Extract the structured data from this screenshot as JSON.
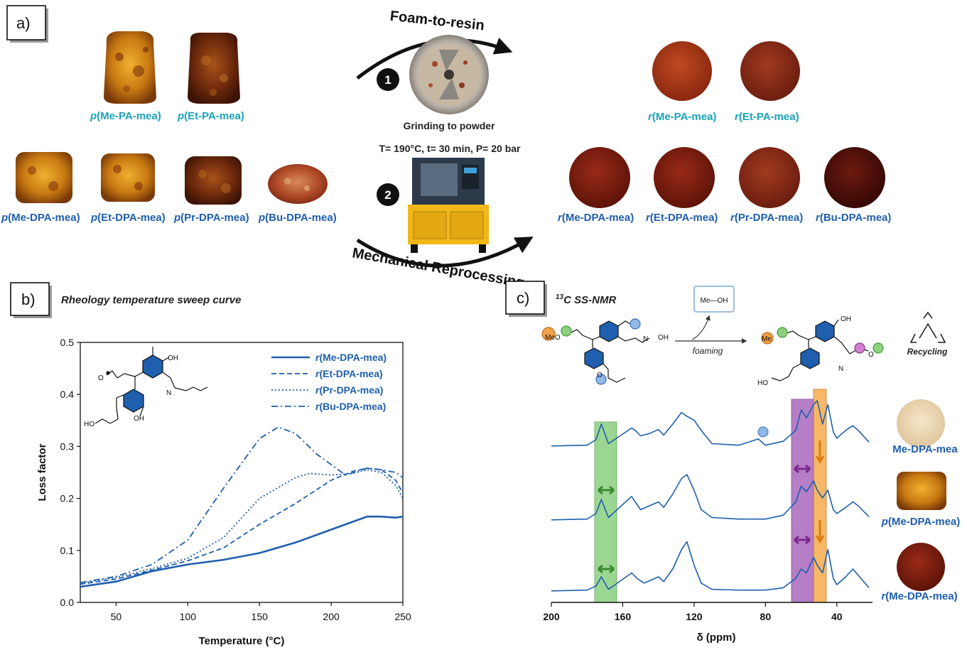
{
  "panel_a": {
    "label": "a)",
    "pa_foams": [
      {
        "prefix": "p",
        "name": "(Me-PA-mea)"
      },
      {
        "prefix": "p",
        "name": "(Et-PA-mea)"
      }
    ],
    "dpa_foams": [
      {
        "prefix": "p",
        "name": "(Me-DPA-mea)"
      },
      {
        "prefix": "p",
        "name": "(Et-DPA-mea)"
      },
      {
        "prefix": "p",
        "name": "(Pr-DPA-mea)"
      },
      {
        "prefix": "p",
        "name": "(Bu-DPA-mea)"
      }
    ],
    "pa_resins": [
      {
        "prefix": "r",
        "name": "(Me-PA-mea)"
      },
      {
        "prefix": "r",
        "name": "(Et-PA-mea)"
      }
    ],
    "dpa_resins": [
      {
        "prefix": "r",
        "name": "(Me-DPA-mea)"
      },
      {
        "prefix": "r",
        "name": "(Et-DPA-mea)"
      },
      {
        "prefix": "r",
        "name": "(Pr-DPA-mea)"
      },
      {
        "prefix": "r",
        "name": "(Bu-DPA-mea)"
      }
    ],
    "top_arc_title": "Foam-to-resin",
    "bottom_arc_title": "Mechanical Reprocessing",
    "step1_number": "1",
    "step1_caption": "Grinding to powder",
    "step2_number": "2",
    "step2_conditions": "T= 190°C,  t= 30 min, P= 20 bar"
  },
  "panel_b": {
    "label": "b)",
    "heading": "Rheology temperature sweep curve",
    "chem_labels": {
      "oh_top": "OH",
      "n": "N",
      "o": "O",
      "ho": "HO",
      "oh_bottom": "OH"
    }
  },
  "panel_c": {
    "label": "c)",
    "heading_sup": "13",
    "heading": "C SS-NMR",
    "methanol": "Me—OH",
    "arrow_label": "foaming",
    "recycling": "Recycling",
    "chem_labels": {
      "meo": "MeO",
      "me": "Me",
      "oh": "OH",
      "n": "N",
      "o": "O",
      "ho": "HO"
    },
    "sample_labels": [
      {
        "prefix": "",
        "name": "Me-DPA-mea"
      },
      {
        "prefix": "p",
        "name": "(Me-DPA-mea)"
      },
      {
        "prefix": "r",
        "name": "(Me-DPA-mea)"
      }
    ]
  },
  "colors": {
    "blue": "#1f5fae",
    "cyan": "#1aa3b8",
    "green_band": "#7bc96f",
    "purple_band": "#a35fb8",
    "orange_band": "#f5a742"
  },
  "chart_data": [
    {
      "type": "line",
      "xlabel": "Temperature (°C)",
      "ylabel": "Loss factor",
      "xlim": [
        25,
        250
      ],
      "ylim": [
        0.0,
        0.5
      ],
      "xticks": [
        50,
        100,
        150,
        200,
        250
      ],
      "yticks": [
        0.0,
        0.1,
        0.2,
        0.3,
        0.4,
        0.5
      ],
      "grid": false,
      "legend_position": "top-right",
      "series": [
        {
          "name_prefix": "r",
          "name": "(Me-DPA-mea)",
          "dash": "solid",
          "x": [
            25,
            50,
            75,
            100,
            125,
            150,
            175,
            200,
            215,
            225,
            235,
            245,
            250
          ],
          "y": [
            0.03,
            0.04,
            0.06,
            0.073,
            0.082,
            0.095,
            0.115,
            0.14,
            0.155,
            0.165,
            0.165,
            0.163,
            0.165
          ]
        },
        {
          "name_prefix": "r",
          "name": "(Et-DPA-mea)",
          "dash": "dashed",
          "x": [
            25,
            50,
            75,
            100,
            125,
            150,
            175,
            200,
            215,
            225,
            235,
            245,
            250
          ],
          "y": [
            0.035,
            0.045,
            0.062,
            0.08,
            0.105,
            0.15,
            0.19,
            0.235,
            0.252,
            0.258,
            0.255,
            0.235,
            0.21
          ]
        },
        {
          "name_prefix": "r",
          "name": "(Pr-DPA-mea)",
          "dash": "dotted",
          "x": [
            25,
            50,
            75,
            100,
            125,
            150,
            175,
            185,
            200,
            215,
            225,
            235,
            245,
            250
          ],
          "y": [
            0.037,
            0.048,
            0.065,
            0.085,
            0.125,
            0.2,
            0.24,
            0.248,
            0.245,
            0.248,
            0.255,
            0.25,
            0.225,
            0.2
          ]
        },
        {
          "name_prefix": "r",
          "name": "(Bu-DPA-mea)",
          "dash": "dashdot",
          "x": [
            25,
            50,
            75,
            100,
            125,
            150,
            163,
            175,
            190,
            210,
            225,
            235,
            245,
            250
          ],
          "y": [
            0.038,
            0.05,
            0.073,
            0.12,
            0.22,
            0.315,
            0.337,
            0.325,
            0.285,
            0.245,
            0.258,
            0.255,
            0.25,
            0.24
          ]
        }
      ]
    },
    {
      "type": "line",
      "xlabel": "δ (ppm)",
      "ylabel": "",
      "xlim": [
        200,
        20
      ],
      "xticks": [
        200,
        160,
        120,
        80,
        40
      ],
      "reversed_x": true,
      "grid": false,
      "series": [
        {
          "name": "Me-DPA-mea",
          "x": [
            200,
            180,
            175,
            172,
            168,
            155,
            153,
            150,
            145,
            140,
            137,
            132,
            127,
            124,
            120,
            116,
            110,
            95,
            84,
            80,
            70,
            63,
            60,
            57,
            53,
            51,
            48,
            45,
            42,
            40,
            35,
            31,
            28,
            22
          ],
          "y": [
            0.02,
            0.03,
            0.1,
            0.3,
            0.05,
            0.25,
            0.22,
            0.15,
            0.18,
            0.23,
            0.16,
            0.3,
            0.45,
            0.4,
            0.35,
            0.22,
            0.05,
            0.03,
            0.11,
            0.03,
            0.08,
            0.22,
            0.48,
            0.38,
            0.55,
            0.6,
            0.3,
            0.55,
            0.2,
            0.12,
            0.22,
            0.28,
            0.22,
            0.07
          ]
        },
        {
          "name": "(Me-DPA-mea)",
          "x": [
            200,
            180,
            175,
            172,
            168,
            155,
            153,
            150,
            145,
            140,
            137,
            132,
            127,
            124,
            120,
            116,
            110,
            95,
            80,
            70,
            63,
            60,
            57,
            53,
            51,
            48,
            45,
            42,
            40,
            35,
            31,
            28,
            22
          ],
          "y": [
            0.02,
            0.03,
            0.1,
            0.28,
            0.05,
            0.32,
            0.25,
            0.15,
            0.2,
            0.25,
            0.18,
            0.35,
            0.55,
            0.6,
            0.4,
            0.15,
            0.05,
            0.03,
            0.03,
            0.08,
            0.25,
            0.45,
            0.38,
            0.52,
            0.4,
            0.3,
            0.4,
            0.15,
            0.1,
            0.18,
            0.25,
            0.2,
            0.06
          ]
        },
        {
          "name": "(Me-DPA-mea)",
          "x": [
            200,
            180,
            175,
            172,
            168,
            155,
            152,
            148,
            145,
            140,
            137,
            132,
            127,
            124,
            120,
            116,
            110,
            95,
            80,
            70,
            63,
            60,
            57,
            53,
            51,
            48,
            45,
            42,
            40,
            35,
            31,
            28,
            22
          ],
          "y": [
            0.02,
            0.03,
            0.08,
            0.2,
            0.04,
            0.25,
            0.18,
            0.12,
            0.15,
            0.2,
            0.14,
            0.3,
            0.55,
            0.65,
            0.35,
            0.12,
            0.04,
            0.03,
            0.03,
            0.06,
            0.18,
            0.3,
            0.25,
            0.45,
            0.35,
            0.25,
            0.55,
            0.18,
            0.1,
            0.2,
            0.3,
            0.22,
            0.06
          ]
        }
      ]
    }
  ]
}
